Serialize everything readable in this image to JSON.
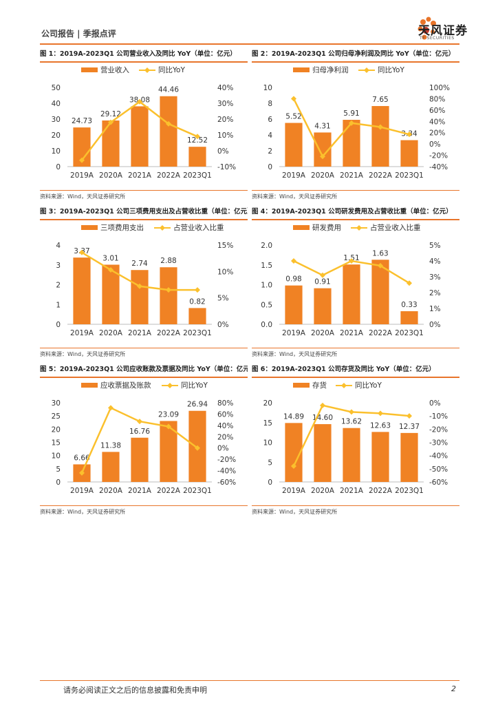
{
  "header": {
    "left_text": "公司报告 | 季报点评",
    "logo_name": "天风证券",
    "logo_sub": "TF SECURITIES"
  },
  "colors": {
    "bar": "#f08224",
    "line": "#fbc02d",
    "accent": "#e8742a"
  },
  "charts": [
    {
      "title": "图 1：2019A-2023Q1 公司营业收入及同比 YoY（单位：亿元）",
      "source": "资料来源：Wind，天风证券研究所",
      "bar_name": "营业收入",
      "line_name": "同比YoY",
      "left_ticks": [
        "0",
        "10",
        "20",
        "30",
        "40",
        "50"
      ],
      "right_ticks": [
        "-10%",
        "0%",
        "10%",
        "20%",
        "30%",
        "40%"
      ]
    },
    {
      "title": "图 2：2019A-2023Q1 公司归母净利润及同比 YoY（单位：亿元）",
      "source": "资料来源：Wind，天风证券研究所",
      "bar_name": "归母净利润",
      "line_name": "同比YoY",
      "left_ticks": [
        "0",
        "2",
        "4",
        "6",
        "8",
        "10"
      ],
      "right_ticks": [
        "-40%",
        "-20%",
        "0%",
        "20%",
        "40%",
        "60%",
        "80%",
        "100%"
      ]
    },
    {
      "title": "图 3：2019A-2023Q1 公司三项费用支出及占营收比重（单位：亿元）",
      "source": "资料来源：Wind，天风证券研究所",
      "bar_name": "三项费用支出",
      "line_name": "占营业收入比重",
      "left_ticks": [
        "0",
        "1",
        "2",
        "3",
        "4"
      ],
      "right_ticks": [
        "0%",
        "5%",
        "10%",
        "15%"
      ]
    },
    {
      "title": "图 4：2019A-2023Q1 公司研发费用及占营收比重（单位：亿元）",
      "source": "资料来源：Wind，天风证券研究所",
      "bar_name": "研发费用",
      "line_name": "占营业收入比重",
      "left_ticks": [
        "0.0",
        "0.5",
        "1.0",
        "1.5",
        "2.0"
      ],
      "right_ticks": [
        "0%",
        "1%",
        "2%",
        "3%",
        "4%",
        "5%"
      ]
    },
    {
      "title": "图 5：2019A-2023Q1 公司应收账款及票据及同比 YoY（单位：亿元）",
      "source": "资料来源：Wind，天风证券研究所",
      "bar_name": "应收票据及账款",
      "line_name": "同比YoY",
      "left_ticks": [
        "0",
        "5",
        "10",
        "15",
        "20",
        "25",
        "30"
      ],
      "right_ticks": [
        "-60%",
        "-40%",
        "-20%",
        "0%",
        "20%",
        "40%",
        "60%",
        "80%"
      ]
    },
    {
      "title": "图 6：2019A-2023Q1 公司存货及同比 YoY（单位：亿元）",
      "source": "资料来源：Wind，天风证券研究所",
      "bar_name": "存货",
      "line_name": "同比YoY",
      "left_ticks": [
        "0",
        "5",
        "10",
        "15",
        "20"
      ],
      "right_ticks": [
        "-60%",
        "-50%",
        "-40%",
        "-30%",
        "-20%",
        "-10%",
        "0%"
      ]
    }
  ],
  "chart_data": [
    {
      "type": "bar",
      "categories": [
        "2019A",
        "2020A",
        "2021A",
        "2022A",
        "2023Q1"
      ],
      "series": [
        {
          "name": "营业收入",
          "values": [
            24.73,
            29.12,
            38.08,
            44.46,
            12.52
          ],
          "labels": [
            "24.73",
            "29.12",
            "38.08",
            "44.46",
            "12.52"
          ]
        },
        {
          "name": "同比YoY",
          "values": [
            -6,
            18,
            31,
            17,
            9
          ]
        }
      ],
      "ylim": [
        0,
        50
      ],
      "y2lim": [
        -10,
        40
      ]
    },
    {
      "type": "bar",
      "categories": [
        "2019A",
        "2020A",
        "2021A",
        "2022A",
        "2023Q1"
      ],
      "series": [
        {
          "name": "归母净利润",
          "values": [
            5.52,
            4.31,
            5.91,
            7.65,
            3.34
          ],
          "labels": [
            "5.52",
            "4.31",
            "5.91",
            "7.65",
            "3.34"
          ]
        },
        {
          "name": "同比YoY",
          "values": [
            80,
            -22,
            37,
            30,
            17
          ]
        }
      ],
      "ylim": [
        0,
        10
      ],
      "y2lim": [
        -40,
        100
      ]
    },
    {
      "type": "bar",
      "categories": [
        "2019A",
        "2020A",
        "2021A",
        "2022A",
        "2023Q1"
      ],
      "series": [
        {
          "name": "三项费用支出",
          "values": [
            3.37,
            3.01,
            2.74,
            2.88,
            0.82
          ],
          "labels": [
            "3.37",
            "3.01",
            "2.74",
            "2.88",
            "0.82"
          ]
        },
        {
          "name": "占营业收入比重",
          "values": [
            13.6,
            10.3,
            7.2,
            6.5,
            6.5
          ]
        }
      ],
      "ylim": [
        0,
        4
      ],
      "y2lim": [
        0,
        15
      ]
    },
    {
      "type": "bar",
      "categories": [
        "2019A",
        "2020A",
        "2021A",
        "2022A",
        "2023Q1"
      ],
      "series": [
        {
          "name": "研发费用",
          "values": [
            0.98,
            0.91,
            1.51,
            1.63,
            0.33
          ],
          "labels": [
            "0.98",
            "0.91",
            "1.51",
            "1.63",
            "0.33"
          ]
        },
        {
          "name": "占营业收入比重",
          "values": [
            4.0,
            3.1,
            4.0,
            3.7,
            2.6
          ]
        }
      ],
      "ylim": [
        0,
        2
      ],
      "y2lim": [
        0,
        5
      ]
    },
    {
      "type": "bar",
      "categories": [
        "2019A",
        "2020A",
        "2021A",
        "2022A",
        "2023Q1"
      ],
      "series": [
        {
          "name": "应收票据及账款",
          "values": [
            6.66,
            11.38,
            16.76,
            23.09,
            26.94
          ],
          "labels": [
            "6.66",
            "11.38",
            "16.76",
            "23.09",
            "26.94"
          ]
        },
        {
          "name": "同比YoY",
          "values": [
            -44,
            71,
            47,
            38,
            0
          ]
        }
      ],
      "ylim": [
        0,
        30
      ],
      "y2lim": [
        -60,
        80
      ]
    },
    {
      "type": "bar",
      "categories": [
        "2019A",
        "2020A",
        "2021A",
        "2022A",
        "2023Q1"
      ],
      "series": [
        {
          "name": "存货",
          "values": [
            14.89,
            14.6,
            13.62,
            12.63,
            12.37
          ],
          "labels": [
            "14.89",
            "14.60",
            "13.62",
            "12.63",
            "12.37"
          ]
        },
        {
          "name": "同比YoY",
          "values": [
            -48,
            -2,
            -7,
            -8,
            -10
          ]
        }
      ],
      "ylim": [
        0,
        20
      ],
      "y2lim": [
        -60,
        0
      ]
    }
  ],
  "footer": {
    "disclaimer": "请务必阅读正文之后的信息披露和免责申明",
    "page_number": "2"
  }
}
